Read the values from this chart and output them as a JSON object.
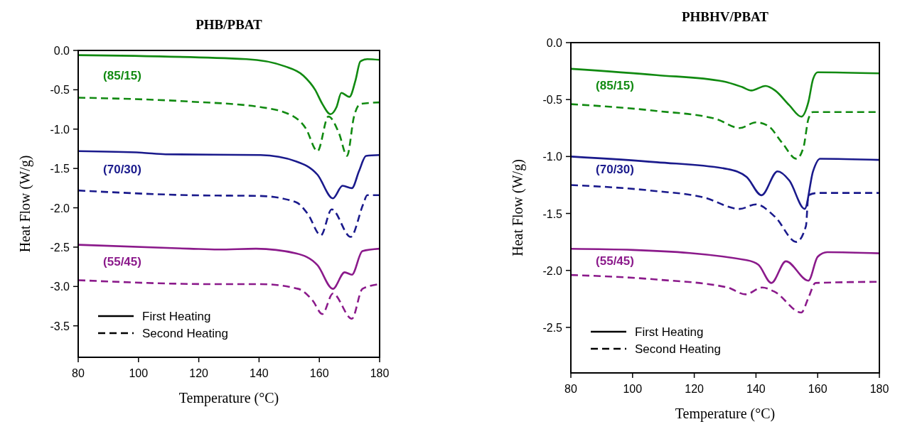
{
  "chart_data": [
    {
      "type": "line",
      "title": "PHB/PBAT",
      "xlabel": "Temperature (°C)",
      "ylabel": "Heat Flow (W/g)",
      "xlim": [
        80,
        180
      ],
      "xticks": [
        80,
        100,
        120,
        140,
        160,
        180
      ],
      "ylim": [
        -3.9,
        0
      ],
      "yticks": [
        {
          "value": 0,
          "label": "0.0"
        },
        {
          "value": -0.5,
          "label": "-0.5"
        },
        {
          "value": -1,
          "label": "-1.0"
        },
        {
          "value": -1.5,
          "label": "-1.5"
        },
        {
          "value": -2,
          "label": "-2.0"
        },
        {
          "value": -2.5,
          "label": "-2.5"
        },
        {
          "value": -3,
          "label": "-3.0"
        },
        {
          "value": -3.5,
          "label": "-3.5"
        }
      ],
      "annotations": [
        "(85/15)",
        "(70/30)",
        "(55/45)",
        "First Heating",
        "Second Heating"
      ],
      "series": [
        {
          "color": "#118a11",
          "line_style": "solid",
          "x": [
            80,
            135.8,
            148.4,
            154.7,
            158.6,
            161,
            163.7,
            165.7,
            167.3,
            170,
            172,
            173.6,
            175.9,
            180
          ],
          "values": [
            -0.06,
            -0.11,
            -0.2,
            -0.32,
            -0.5,
            -0.68,
            -0.81,
            -0.72,
            -0.54,
            -0.59,
            -0.38,
            -0.14,
            -0.11,
            -0.12
          ]
        },
        {
          "color": "#118a11",
          "line_style": "dashed",
          "x": [
            80,
            117,
            140.5,
            151.5,
            155.5,
            159.4,
            163,
            166.5,
            169.2,
            171.5,
            173.6,
            180
          ],
          "values": [
            -0.6,
            -0.65,
            -0.72,
            -0.84,
            -0.99,
            -1.28,
            -0.84,
            -1.05,
            -1.34,
            -0.84,
            -0.68,
            -0.66
          ]
        },
        {
          "color": "#1a1a8c",
          "line_style": "solid",
          "x": [
            80,
            101.2,
            109,
            140.5,
            152.3,
            159.4,
            164.5,
            167.7,
            170.8,
            173.2,
            175.5,
            180
          ],
          "values": [
            -1.28,
            -1.3,
            -1.32,
            -1.33,
            -1.41,
            -1.58,
            -1.88,
            -1.72,
            -1.75,
            -1.53,
            -1.34,
            -1.33
          ]
        },
        {
          "color": "#1a1a8c",
          "line_style": "dashed",
          "x": [
            80,
            117,
            140.5,
            152.3,
            156.2,
            160.5,
            164.1,
            170.4,
            174.5,
            175.9,
            180
          ],
          "values": [
            -1.78,
            -1.84,
            -1.85,
            -1.93,
            -2.08,
            -2.35,
            -2.02,
            -2.37,
            -1.96,
            -1.84,
            -1.84
          ]
        },
        {
          "color": "#8b1a8b",
          "line_style": "solid",
          "x": [
            80,
            117,
            126.4,
            139,
            152.3,
            159.4,
            164.5,
            168.4,
            170.8,
            174.3,
            180
          ],
          "values": [
            -2.47,
            -2.52,
            -2.53,
            -2.52,
            -2.58,
            -2.73,
            -3.03,
            -2.82,
            -2.85,
            -2.55,
            -2.52
          ]
        },
        {
          "color": "#8b1a8b",
          "line_style": "dashed",
          "x": [
            80,
            124.8,
            140.5,
            153,
            157.8,
            161,
            164.5,
            170.8,
            174.3,
            180
          ],
          "values": [
            -2.92,
            -2.97,
            -2.97,
            -3.03,
            -3.18,
            -3.35,
            -3.09,
            -3.41,
            -3.03,
            -2.97
          ]
        }
      ]
    },
    {
      "type": "line",
      "title": "PHBHV/PBAT",
      "xlabel": "Temperature (°C)",
      "ylabel": "Heat Flow (W/g)",
      "xlim": [
        80,
        180
      ],
      "xticks": [
        80,
        100,
        120,
        140,
        160,
        180
      ],
      "ylim": [
        -2.9,
        0
      ],
      "yticks": [
        {
          "value": 0,
          "label": "0.0"
        },
        {
          "value": -0.5,
          "label": "-0.5"
        },
        {
          "value": -1,
          "label": "-1.0"
        },
        {
          "value": -1.5,
          "label": "-1.5"
        },
        {
          "value": -2,
          "label": "-2.0"
        },
        {
          "value": -2.5,
          "label": "-2.5"
        }
      ],
      "annotations": [
        "(85/15)",
        "(70/30)",
        "(55/45)",
        "First Heating",
        "Second Heating"
      ],
      "series": [
        {
          "color": "#118a11",
          "line_style": "solid",
          "x": [
            80,
            107.8,
            129.3,
            135.5,
            138.5,
            143.1,
            146.2,
            150.8,
            154.7,
            157,
            158.5,
            160,
            180
          ],
          "values": [
            -0.23,
            -0.285,
            -0.34,
            -0.39,
            -0.42,
            -0.38,
            -0.42,
            -0.55,
            -0.65,
            -0.52,
            -0.32,
            -0.26,
            -0.27
          ]
        },
        {
          "color": "#118a11",
          "line_style": "dashed",
          "x": [
            80,
            107.8,
            127,
            134.7,
            140,
            143.9,
            148.5,
            153.1,
            155.4,
            157,
            158.5,
            180
          ],
          "values": [
            -0.54,
            -0.6,
            -0.67,
            -0.75,
            -0.7,
            -0.73,
            -0.88,
            -1.02,
            -0.92,
            -0.67,
            -0.61,
            -0.61
          ]
        },
        {
          "color": "#1a1a8c",
          "line_style": "solid",
          "x": [
            80,
            107.8,
            130.8,
            137,
            141.8,
            147,
            150.8,
            155.8,
            158.5,
            160.8,
            180
          ],
          "values": [
            -1,
            -1.05,
            -1.11,
            -1.18,
            -1.34,
            -1.13,
            -1.21,
            -1.46,
            -1.13,
            -1.02,
            -1.03
          ]
        },
        {
          "color": "#1a1a8c",
          "line_style": "dashed",
          "x": [
            80,
            106.3,
            123.2,
            134.7,
            140,
            146.2,
            153.1,
            156.2,
            157,
            160,
            180
          ],
          "values": [
            -1.25,
            -1.3,
            -1.36,
            -1.46,
            -1.42,
            -1.53,
            -1.75,
            -1.61,
            -1.34,
            -1.32,
            -1.32
          ]
        },
        {
          "color": "#8b1a8b",
          "line_style": "solid",
          "x": [
            80,
            100.1,
            137,
            140.8,
            145,
            149.7,
            157,
            160,
            163.1,
            180
          ],
          "values": [
            -1.81,
            -1.82,
            -1.91,
            -1.95,
            -2.11,
            -1.92,
            -2.09,
            -1.88,
            -1.84,
            -1.85
          ]
        },
        {
          "color": "#8b1a8b",
          "line_style": "dashed",
          "x": [
            80,
            107.8,
            130.8,
            136.6,
            142,
            146.2,
            154.7,
            157,
            159.3,
            180
          ],
          "values": [
            -2.04,
            -2.08,
            -2.15,
            -2.21,
            -2.15,
            -2.19,
            -2.37,
            -2.24,
            -2.11,
            -2.1
          ]
        }
      ]
    }
  ]
}
